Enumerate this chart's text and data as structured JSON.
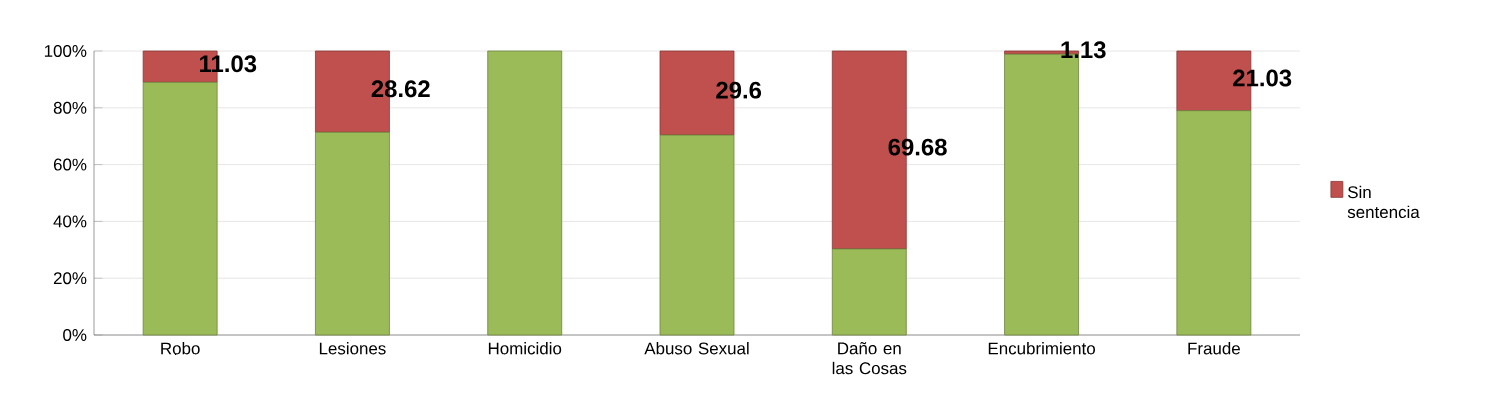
{
  "chart_data": {
    "type": "bar",
    "stacked": true,
    "categories": [
      "Robo",
      "Lesiones",
      "Homicidio",
      "Abuso Sexual",
      "Daño en las Cosas",
      "Encubrimiento",
      "Fraude"
    ],
    "series": [
      {
        "color": "#9bbb59",
        "values": [
          88.97,
          71.38,
          100,
          70.4,
          30.32,
          98.87,
          78.97
        ]
      },
      {
        "name": "Sin sentencia",
        "color": "#c0504d",
        "values": [
          11.03,
          28.62,
          0,
          29.6,
          69.68,
          1.13,
          21.03
        ],
        "value_labels": [
          "11.03",
          "28.62",
          null,
          "29.6",
          "69.68",
          "1.13",
          "21.03"
        ]
      }
    ],
    "ylim": [
      0,
      100
    ],
    "yticks": [
      {
        "value": 0,
        "label": "0%"
      },
      {
        "value": 20,
        "label": "20%"
      },
      {
        "value": 40,
        "label": "40%"
      },
      {
        "value": 60,
        "label": "60%"
      },
      {
        "value": 80,
        "label": "80%"
      },
      {
        "value": 100,
        "label": "100%"
      }
    ],
    "grid": "y",
    "legend": "right"
  }
}
